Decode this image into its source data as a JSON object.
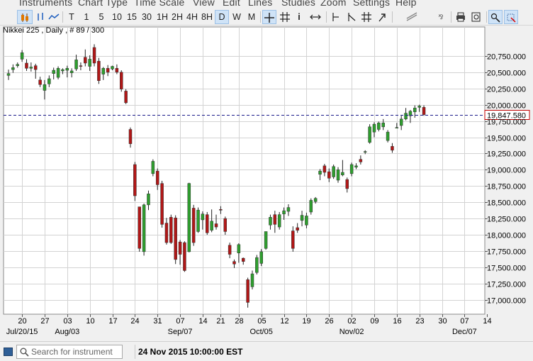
{
  "menu": [
    "Instruments",
    "Chart Type",
    "Time Scale",
    "View",
    "Edit",
    "Lines",
    "Studies",
    "Zoom",
    "Settings",
    "Help"
  ],
  "toolbar": {
    "timeframes": [
      "T",
      "1",
      "5",
      "10",
      "15",
      "30",
      "1H",
      "2H",
      "4H",
      "8H",
      "D",
      "W",
      "M"
    ],
    "active_timeframe": "D",
    "tools": [
      "crosshair-icon",
      "grid-icon",
      "info-icon",
      "arrows-icon",
      "vertical-line-icon",
      "trend-line-icon",
      "fork-icon",
      "arrow-up-icon",
      "draw-lines-icon",
      "delete-all-icon",
      "print-icon",
      "zoom-box-icon",
      "cursor-select-icon",
      "pin-icon"
    ]
  },
  "chart_header": {
    "instrument": "Nikkei 225",
    "period": "Daily",
    "bar_info": "# 89 / 300"
  },
  "status": {
    "search_placeholder": "Search for instrument",
    "datetime": "24 Nov 2015 10:00:00 EST"
  },
  "colors": {
    "up": "#2e9e2e",
    "down": "#b01717",
    "grid": "#d3d3d3",
    "price_line": "#1a1a8a",
    "price_box": "#c00000"
  },
  "chart_data": {
    "type": "candlestick",
    "title": "Nikkei 225 , Daily , # 89 / 300",
    "ylim": [
      16880,
      21150
    ],
    "yticks": [
      17000,
      17250,
      17500,
      17750,
      18000,
      18250,
      18500,
      18750,
      19000,
      19250,
      19500,
      19750,
      20000,
      20250,
      20500,
      20750
    ],
    "ytick_labels": [
      "17,000.000",
      "17,250.000",
      "17,500.000",
      "17,750.000",
      "18,000.000",
      "18,250.000",
      "18,500.000",
      "18,750.000",
      "19,000.000",
      "19,250.000",
      "19,500.000",
      "19,750.000",
      "20,000.000",
      "20,250.000",
      "20,500.000",
      "20,750.000"
    ],
    "last_price": 19847.58,
    "last_price_label": "19,847.580",
    "xtick_labels": [
      "20",
      "27",
      "03",
      "10",
      "17",
      "24",
      "31",
      "07",
      "14",
      "21",
      "28",
      "05",
      "12",
      "19",
      "26",
      "02",
      "09",
      "16",
      "23",
      "30",
      "07",
      "14"
    ],
    "xtick_bars": [
      3,
      8,
      13,
      18,
      23,
      28,
      33,
      38,
      43,
      47,
      51,
      56,
      61,
      66,
      71,
      76,
      81,
      86,
      91,
      96,
      101,
      106
    ],
    "month_labels": [
      "Jul/20/15",
      "Aug/03",
      "Sep/07",
      "Oct/05",
      "Nov/02",
      "Dec/07"
    ],
    "month_label_bars": [
      3,
      13,
      38,
      56,
      76,
      101
    ],
    "candles": [
      {
        "o": 20450,
        "h": 20540,
        "l": 20380,
        "c": 20480
      },
      {
        "o": 20540,
        "h": 20620,
        "l": 20490,
        "c": 20570
      },
      {
        "o": 20600,
        "h": 20650,
        "l": 20570,
        "c": 20620
      },
      {
        "o": 20700,
        "h": 20840,
        "l": 20660,
        "c": 20800
      },
      {
        "o": 20640,
        "h": 20700,
        "l": 20520,
        "c": 20560
      },
      {
        "o": 20560,
        "h": 20650,
        "l": 20510,
        "c": 20580
      },
      {
        "o": 20600,
        "h": 20630,
        "l": 20400,
        "c": 20540
      },
      {
        "o": 20380,
        "h": 20430,
        "l": 20270,
        "c": 20310
      },
      {
        "o": 20220,
        "h": 20380,
        "l": 20080,
        "c": 20310
      },
      {
        "o": 20320,
        "h": 20450,
        "l": 20270,
        "c": 20400
      },
      {
        "o": 20480,
        "h": 20570,
        "l": 20390,
        "c": 20530
      },
      {
        "o": 20420,
        "h": 20590,
        "l": 20390,
        "c": 20560
      },
      {
        "o": 20520,
        "h": 20560,
        "l": 20470,
        "c": 20540
      },
      {
        "o": 20530,
        "h": 20600,
        "l": 20420,
        "c": 20560
      },
      {
        "o": 20490,
        "h": 20560,
        "l": 20420,
        "c": 20520
      },
      {
        "o": 20550,
        "h": 20770,
        "l": 20520,
        "c": 20690
      },
      {
        "o": 20600,
        "h": 20650,
        "l": 20530,
        "c": 20590
      },
      {
        "o": 20730,
        "h": 20850,
        "l": 20590,
        "c": 20640
      },
      {
        "o": 20590,
        "h": 20760,
        "l": 20520,
        "c": 20700
      },
      {
        "o": 20880,
        "h": 20930,
        "l": 20590,
        "c": 20640
      },
      {
        "o": 20670,
        "h": 20720,
        "l": 20320,
        "c": 20370
      },
      {
        "o": 20470,
        "h": 20580,
        "l": 20380,
        "c": 20560
      },
      {
        "o": 20560,
        "h": 20610,
        "l": 20440,
        "c": 20500
      },
      {
        "o": 20550,
        "h": 20600,
        "l": 20530,
        "c": 20590
      },
      {
        "o": 20560,
        "h": 20620,
        "l": 20470,
        "c": 20500
      },
      {
        "o": 20500,
        "h": 20530,
        "l": 20200,
        "c": 20240
      },
      {
        "o": 20210,
        "h": 20240,
        "l": 20010,
        "c": 20030
      },
      {
        "o": 19620,
        "h": 19650,
        "l": 19340,
        "c": 19400
      },
      {
        "o": 19080,
        "h": 19120,
        "l": 18520,
        "c": 18600
      },
      {
        "o": 18430,
        "h": 18430,
        "l": 17740,
        "c": 17790
      },
      {
        "o": 17740,
        "h": 18480,
        "l": 17680,
        "c": 18460
      },
      {
        "o": 18460,
        "h": 18680,
        "l": 18380,
        "c": 18630
      },
      {
        "o": 18940,
        "h": 19160,
        "l": 18900,
        "c": 19130
      },
      {
        "o": 18980,
        "h": 19020,
        "l": 18690,
        "c": 18770
      },
      {
        "o": 18790,
        "h": 18830,
        "l": 18110,
        "c": 18160
      },
      {
        "o": 18180,
        "h": 18260,
        "l": 17850,
        "c": 17880
      },
      {
        "o": 18270,
        "h": 18310,
        "l": 17860,
        "c": 17880
      },
      {
        "o": 18260,
        "h": 18300,
        "l": 17550,
        "c": 17620
      },
      {
        "o": 17890,
        "h": 17920,
        "l": 17540,
        "c": 17700
      },
      {
        "o": 17880,
        "h": 17900,
        "l": 17430,
        "c": 17450
      },
      {
        "o": 17740,
        "h": 18800,
        "l": 17730,
        "c": 18790
      },
      {
        "o": 18410,
        "h": 18460,
        "l": 17830,
        "c": 17880
      },
      {
        "o": 18050,
        "h": 18420,
        "l": 18030,
        "c": 18380
      },
      {
        "o": 18230,
        "h": 18360,
        "l": 18080,
        "c": 18320
      },
      {
        "o": 18310,
        "h": 18350,
        "l": 18000,
        "c": 18030
      },
      {
        "o": 18070,
        "h": 18390,
        "l": 18040,
        "c": 18210
      },
      {
        "o": 18170,
        "h": 18310,
        "l": 18080,
        "c": 18120
      },
      {
        "o": 18390,
        "h": 18440,
        "l": 18320,
        "c": 18380
      },
      {
        "o": 18250,
        "h": 18280,
        "l": 18000,
        "c": 18050
      },
      {
        "o": 17840,
        "h": 17880,
        "l": 17640,
        "c": 17700
      },
      {
        "o": 17590,
        "h": 17620,
        "l": 17490,
        "c": 17550
      },
      {
        "o": 17720,
        "h": 17870,
        "l": 17570,
        "c": 17850
      },
      {
        "o": 17640,
        "h": 17650,
        "l": 17540,
        "c": 17590
      },
      {
        "o": 17310,
        "h": 17340,
        "l": 16880,
        "c": 16960
      },
      {
        "o": 17200,
        "h": 17450,
        "l": 17160,
        "c": 17400
      },
      {
        "o": 17420,
        "h": 17690,
        "l": 17390,
        "c": 17650
      },
      {
        "o": 17560,
        "h": 17780,
        "l": 17520,
        "c": 17740
      },
      {
        "o": 17790,
        "h": 18050,
        "l": 17770,
        "c": 18050
      },
      {
        "o": 18150,
        "h": 18310,
        "l": 18080,
        "c": 18270
      },
      {
        "o": 18310,
        "h": 18370,
        "l": 18030,
        "c": 18160
      },
      {
        "o": 18120,
        "h": 18350,
        "l": 18080,
        "c": 18310
      },
      {
        "o": 18320,
        "h": 18420,
        "l": 18230,
        "c": 18370
      },
      {
        "o": 18360,
        "h": 18470,
        "l": 18290,
        "c": 18420
      },
      {
        "o": 18060,
        "h": 18130,
        "l": 17740,
        "c": 17790
      },
      {
        "o": 18110,
        "h": 18180,
        "l": 18030,
        "c": 18070
      },
      {
        "o": 18220,
        "h": 18370,
        "l": 18130,
        "c": 18300
      },
      {
        "o": 18150,
        "h": 18340,
        "l": 18100,
        "c": 18290
      },
      {
        "o": 18350,
        "h": 18560,
        "l": 18310,
        "c": 18530
      },
      {
        "o": 18510,
        "h": 18580,
        "l": 18480,
        "c": 18560
      },
      {
        "o": 18930,
        "h": 19010,
        "l": 18840,
        "c": 18980
      },
      {
        "o": 19060,
        "h": 19090,
        "l": 18900,
        "c": 18960
      },
      {
        "o": 18970,
        "h": 19020,
        "l": 18810,
        "c": 18870
      },
      {
        "o": 18890,
        "h": 19080,
        "l": 18860,
        "c": 19050
      },
      {
        "o": 18840,
        "h": 19040,
        "l": 18800,
        "c": 19000
      },
      {
        "o": 18920,
        "h": 19150,
        "l": 18900,
        "c": 18960
      },
      {
        "o": 18850,
        "h": 18880,
        "l": 18650,
        "c": 18710
      },
      {
        "o": 18940,
        "h": 19110,
        "l": 18900,
        "c": 19080
      },
      {
        "o": 19040,
        "h": 19100,
        "l": 19010,
        "c": 19060
      },
      {
        "o": 19160,
        "h": 19220,
        "l": 19080,
        "c": 19120
      },
      {
        "o": 19270,
        "h": 19300,
        "l": 19240,
        "c": 19280
      },
      {
        "o": 19420,
        "h": 19700,
        "l": 19400,
        "c": 19660
      },
      {
        "o": 19580,
        "h": 19730,
        "l": 19500,
        "c": 19700
      },
      {
        "o": 19620,
        "h": 19740,
        "l": 19590,
        "c": 19720
      },
      {
        "o": 19660,
        "h": 19780,
        "l": 19610,
        "c": 19720
      },
      {
        "o": 19450,
        "h": 19610,
        "l": 19420,
        "c": 19580
      },
      {
        "o": 19360,
        "h": 19410,
        "l": 19260,
        "c": 19300
      },
      {
        "o": 19650,
        "h": 19720,
        "l": 19640,
        "c": 19650
      },
      {
        "o": 19680,
        "h": 19830,
        "l": 19610,
        "c": 19780
      },
      {
        "o": 19780,
        "h": 19950,
        "l": 19760,
        "c": 19870
      },
      {
        "o": 19830,
        "h": 19920,
        "l": 19720,
        "c": 19900
      },
      {
        "o": 19890,
        "h": 19990,
        "l": 19800,
        "c": 19950
      },
      {
        "o": 19960,
        "h": 20000,
        "l": 19890,
        "c": 19980
      },
      {
        "o": 19960,
        "h": 19990,
        "l": 19830,
        "c": 19848
      }
    ]
  }
}
